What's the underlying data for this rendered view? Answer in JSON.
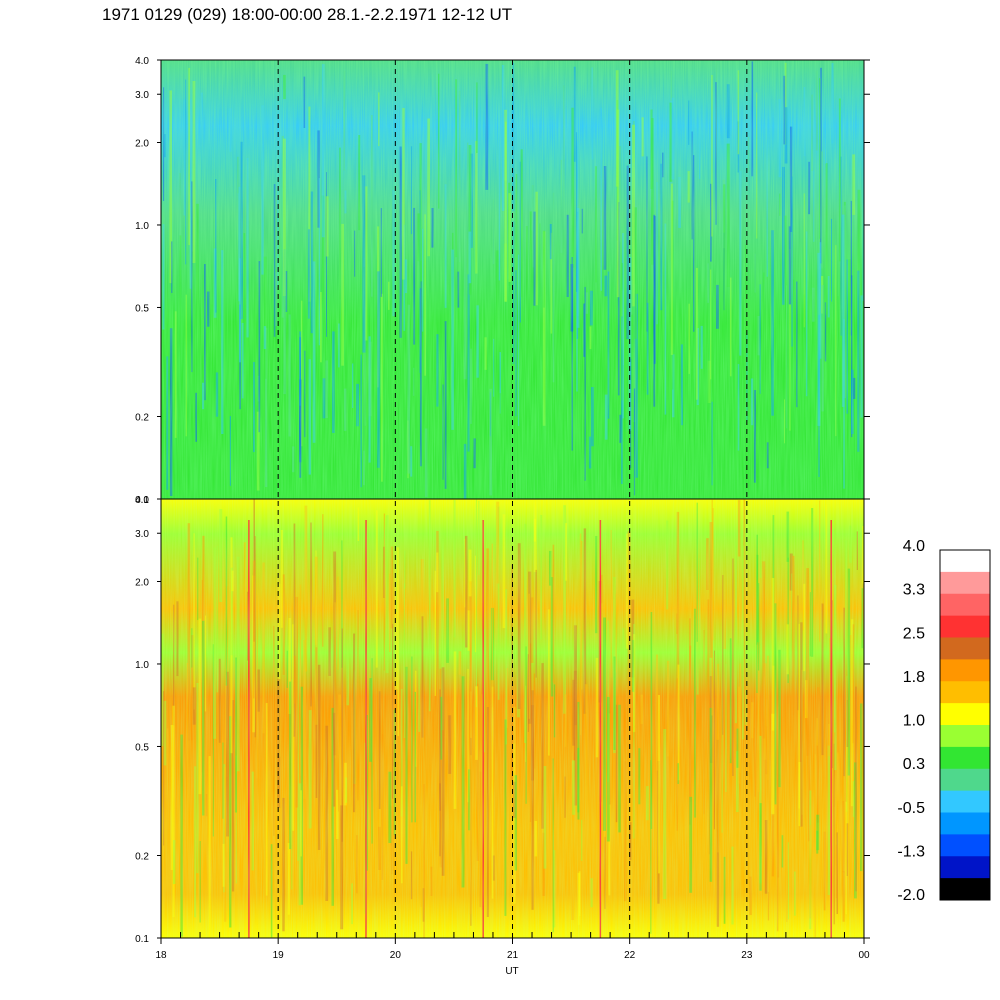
{
  "chart_data": {
    "type": "heatmap",
    "title": "1971 0129 (029) 18:00-00:00 28.1.-2.2.1971  12-12 UT",
    "xlabel": "UT",
    "x_ticks": [
      "18",
      "19",
      "20",
      "21",
      "22",
      "23",
      "00"
    ],
    "x_range": [
      18,
      24
    ],
    "y_scale": "log",
    "y_range": [
      0.1,
      4.0
    ],
    "y_ticks": [
      "0.1",
      "0.2",
      "0.5",
      "1.0",
      "2.0",
      "3.0",
      "4.0"
    ],
    "dashed_lines_at_hours": [
      19,
      20,
      21,
      22,
      23
    ],
    "panels": [
      {
        "position": "top",
        "dominant_levels": [
          "0.3",
          "-0.5",
          "-1.3"
        ]
      },
      {
        "position": "bottom",
        "dominant_levels": [
          "1.8",
          "1.0",
          "0.3"
        ]
      }
    ],
    "colorbar": {
      "labels": [
        "4.0",
        "3.3",
        "2.5",
        "1.8",
        "1.0",
        "0.3",
        "-0.5",
        "-1.3",
        "-2.0"
      ],
      "colors": [
        "#ffffff",
        "#ff9a9a",
        "#ff6464",
        "#ff3232",
        "#d2691e",
        "#ff9600",
        "#ffbe00",
        "#ffff00",
        "#9aff32",
        "#32e632",
        "#4fd88c",
        "#32c8ff",
        "#0096ff",
        "#0050ff",
        "#0014c8",
        "#000000"
      ]
    }
  }
}
